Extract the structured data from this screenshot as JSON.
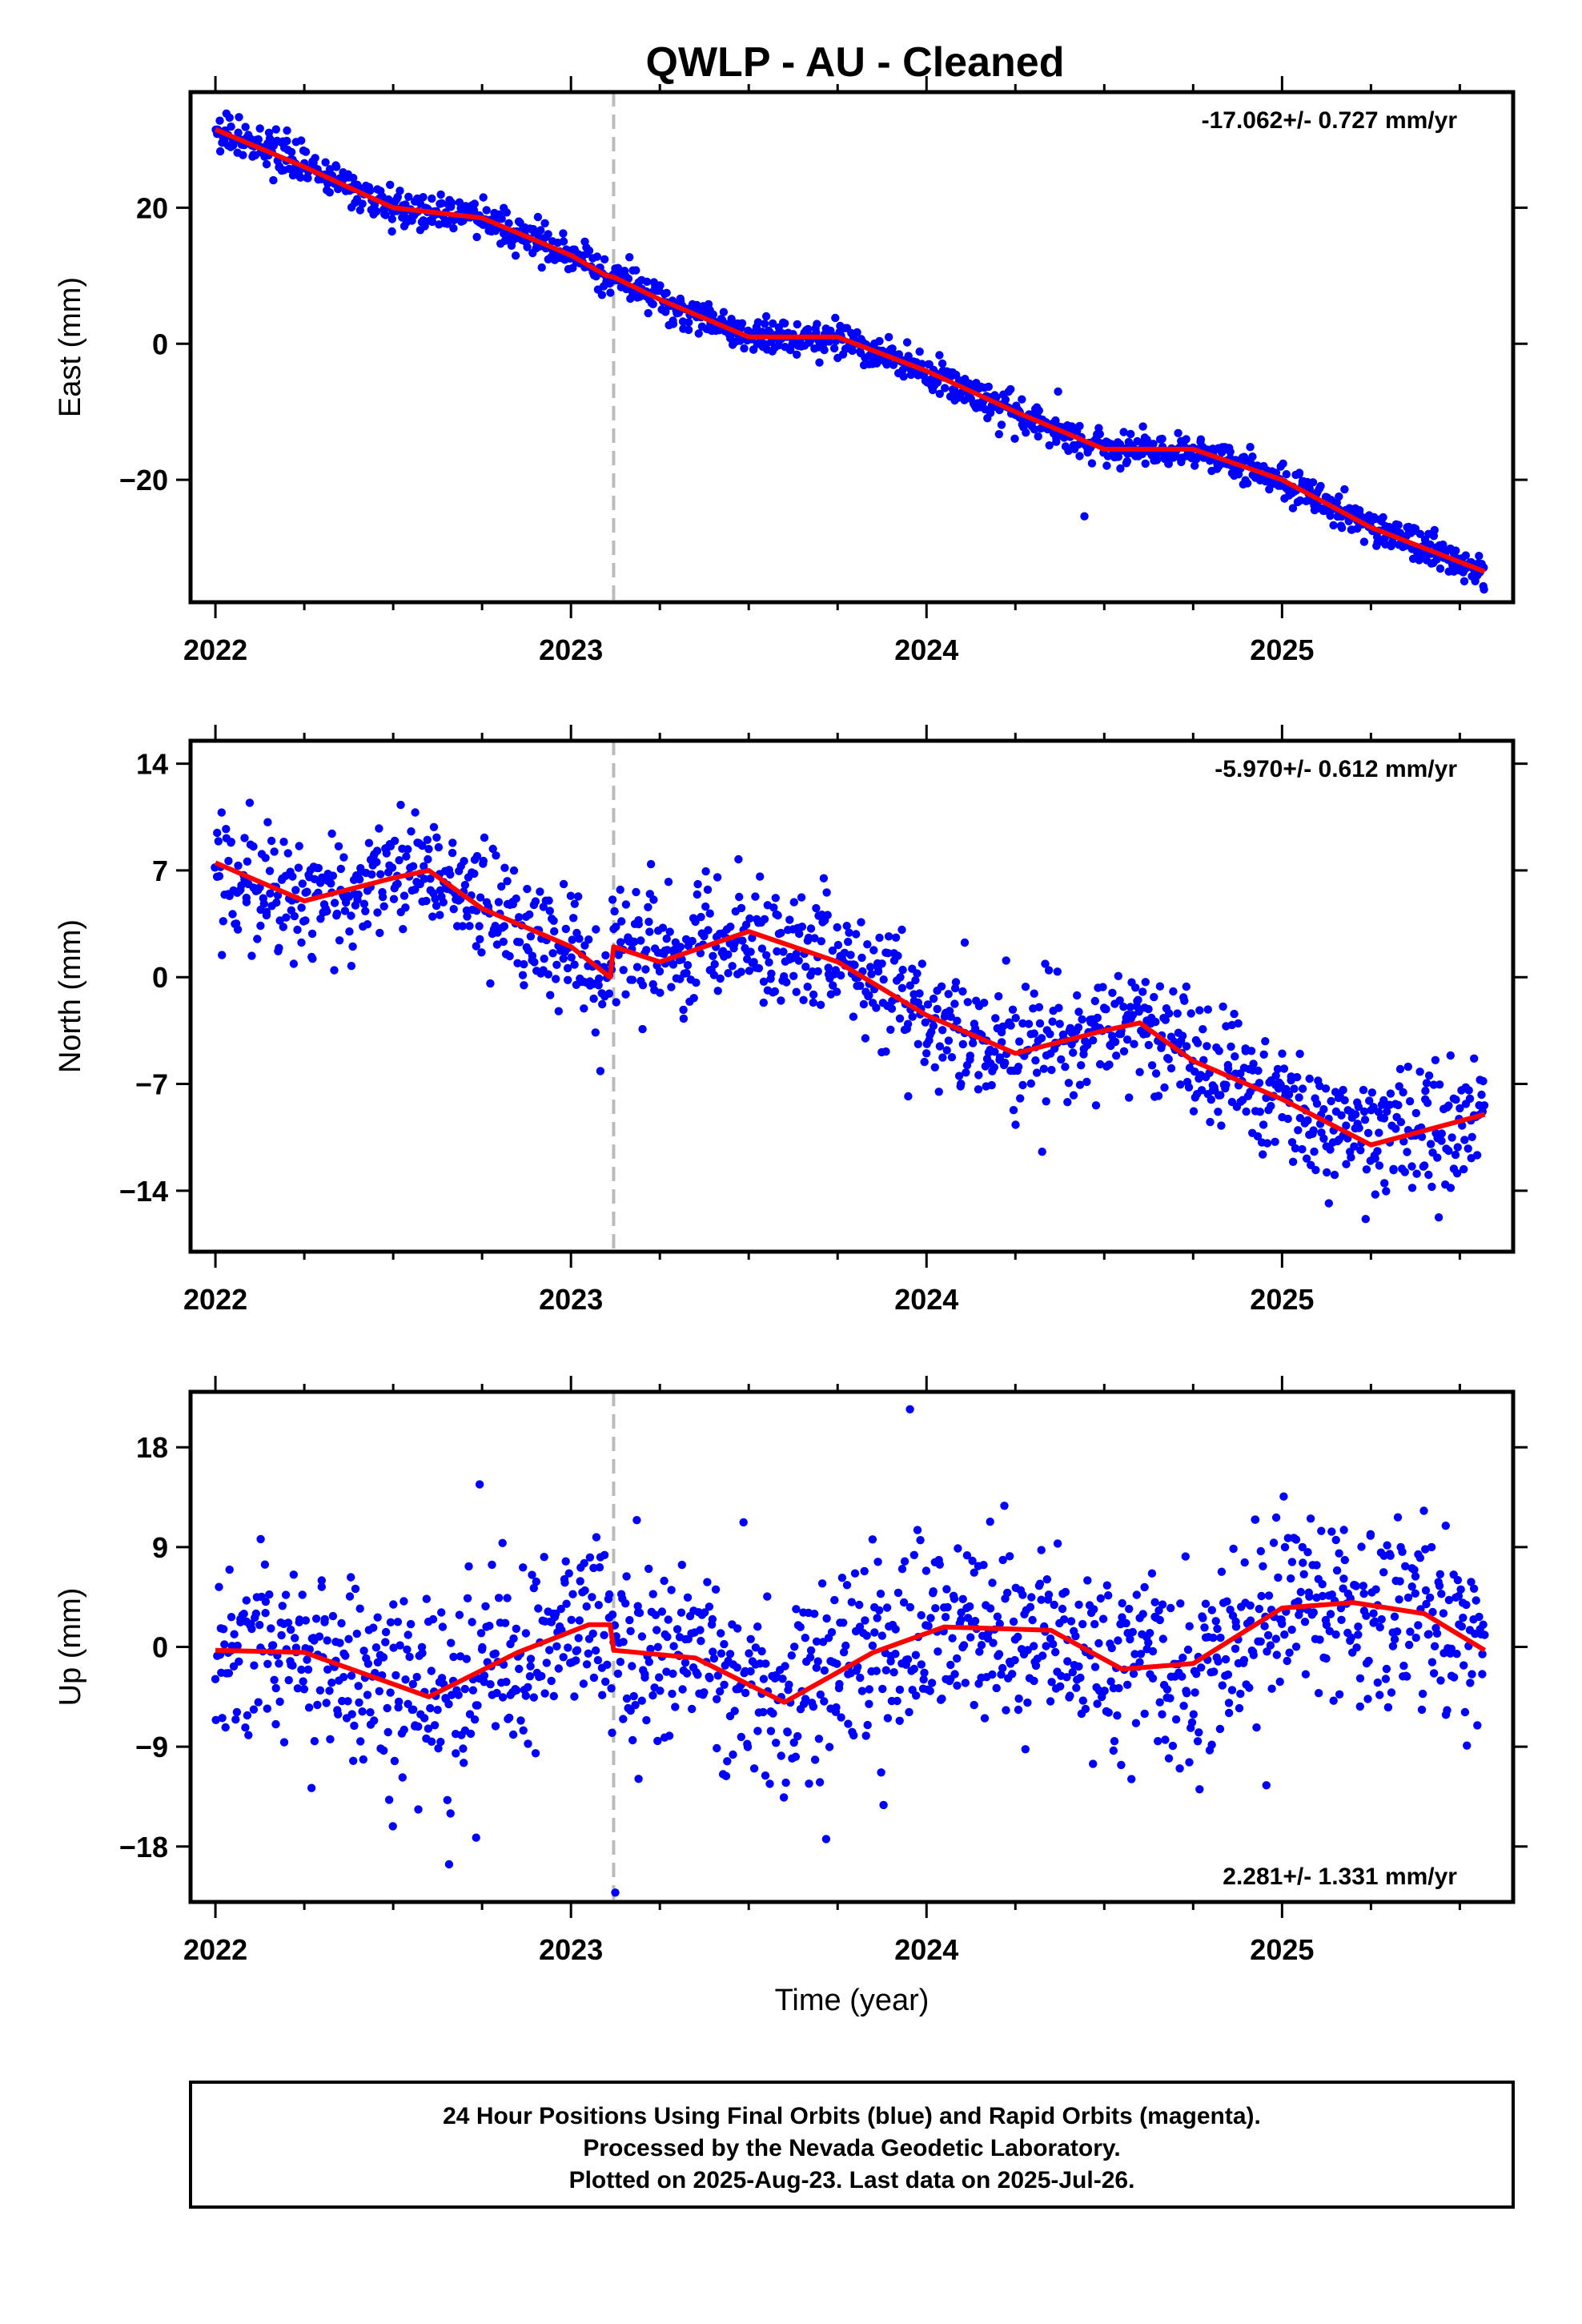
{
  "title": "QWLP  - AU - Cleaned",
  "caption": [
    "24 Hour Positions Using Final Orbits (blue) and Rapid Orbits (magenta).",
    "Processed by the Nevada Geodetic Laboratory.",
    "Plotted on 2025-Aug-23. Last data on 2025-Jul-26."
  ],
  "colors": {
    "points": "#0000ff",
    "model": "#ff0000",
    "event_line": "#bbbbbb",
    "frame": "#000000"
  },
  "chart_data": [
    {
      "type": "scatter",
      "component": "east",
      "ylabel": "East (mm)",
      "xlabel": "",
      "rate_text": "-17.062+/- 0.727 mm/yr",
      "xlim": [
        2021.93,
        2025.65
      ],
      "ylim": [
        -38,
        37
      ],
      "xticks": [
        2022,
        2023,
        2024,
        2025
      ],
      "yticks": [
        -20,
        0,
        20
      ],
      "event_line_x": 2023.12,
      "data_start": 2022.0,
      "data_end": 2025.57,
      "grid": false,
      "model_line": {
        "x": [
          2022.0,
          2022.25,
          2022.5,
          2022.75,
          2023.0,
          2023.1,
          2023.12,
          2023.25,
          2023.5,
          2023.75,
          2024.0,
          2024.25,
          2024.5,
          2024.75,
          2025.0,
          2025.25,
          2025.57
        ],
        "y": [
          31.5,
          26.0,
          20.0,
          18.5,
          13.0,
          10.0,
          9.8,
          6.5,
          1.0,
          1.0,
          -4.0,
          -10.0,
          -15.5,
          -15.5,
          -20.0,
          -27.0,
          -33.5
        ]
      }
    },
    {
      "type": "scatter",
      "component": "north",
      "ylabel": "North (mm)",
      "xlabel": "",
      "rate_text": "-5.970+/- 0.612 mm/yr",
      "xlim": [
        2021.93,
        2025.65
      ],
      "ylim": [
        -18,
        15.5
      ],
      "xticks": [
        2022,
        2023,
        2024,
        2025
      ],
      "yticks": [
        -14,
        -7,
        0,
        7,
        14
      ],
      "event_line_x": 2023.12,
      "data_start": 2022.0,
      "data_end": 2025.57,
      "grid": false,
      "model_line": {
        "x": [
          2022.0,
          2022.25,
          2022.5,
          2022.6,
          2022.75,
          2023.0,
          2023.11,
          2023.12,
          2023.25,
          2023.5,
          2023.75,
          2024.0,
          2024.25,
          2024.5,
          2024.6,
          2024.75,
          2025.0,
          2025.25,
          2025.57
        ],
        "y": [
          7.5,
          5.0,
          6.5,
          7.0,
          4.5,
          2.0,
          0.0,
          2.0,
          1.0,
          3.0,
          1.0,
          -2.5,
          -5.0,
          -3.5,
          -3.0,
          -5.5,
          -8.0,
          -11.0,
          -9.0
        ]
      }
    },
    {
      "type": "scatter",
      "component": "up",
      "ylabel": "Up (mm)",
      "xlabel": "Time (year)",
      "rate_text": "2.281+/- 1.331 mm/yr",
      "xlim": [
        2021.93,
        2025.65
      ],
      "ylim": [
        -23,
        23
      ],
      "xticks": [
        2022,
        2023,
        2024,
        2025
      ],
      "yticks": [
        -18,
        -9,
        0,
        9,
        18
      ],
      "event_line_x": 2023.12,
      "data_start": 2022.0,
      "data_end": 2025.57,
      "grid": false,
      "model_line": {
        "x": [
          2022.0,
          2022.25,
          2022.6,
          2022.85,
          2023.05,
          2023.11,
          2023.12,
          2023.35,
          2023.6,
          2023.85,
          2024.05,
          2024.35,
          2024.55,
          2024.75,
          2025.0,
          2025.2,
          2025.4,
          2025.57
        ],
        "y": [
          -0.3,
          -0.5,
          -4.5,
          -0.5,
          2.0,
          2.0,
          -0.3,
          -1.0,
          -5.0,
          -0.5,
          1.8,
          1.5,
          -2.0,
          -1.5,
          3.5,
          4.0,
          3.0,
          -0.3
        ]
      }
    }
  ]
}
